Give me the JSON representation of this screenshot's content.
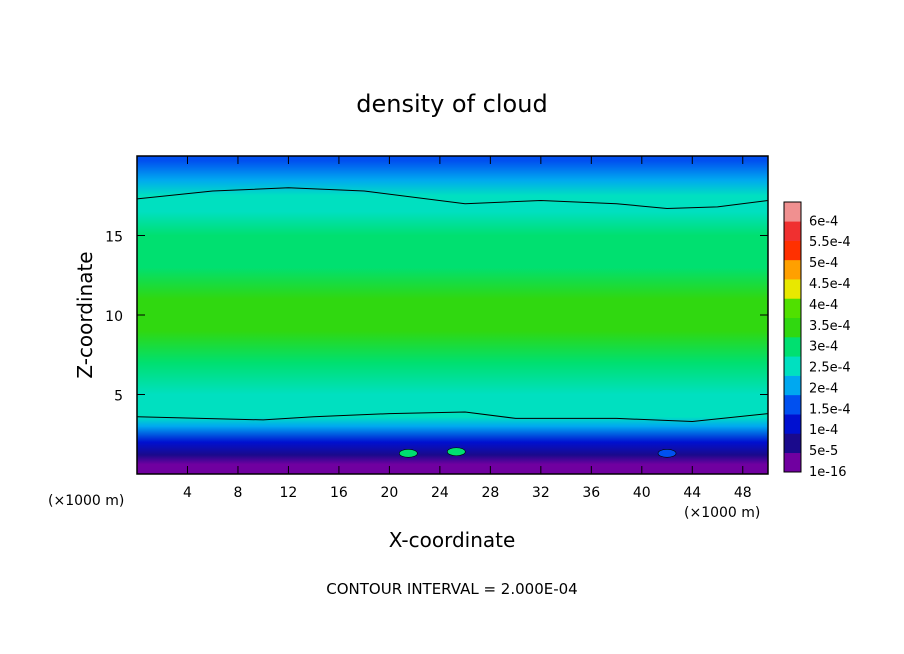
{
  "chart_data": {
    "type": "heatmap",
    "title": "density of cloud",
    "xlabel": "X-coordinate",
    "ylabel": "Z-coordinate",
    "x_unit": "(×1000 m)",
    "y_unit": "(×1000 m)",
    "xlim": [
      0,
      50
    ],
    "ylim": [
      0,
      20
    ],
    "x_ticks": [
      4,
      8,
      12,
      16,
      20,
      24,
      28,
      32,
      36,
      40,
      44,
      48
    ],
    "y_ticks": [
      5,
      10,
      15
    ],
    "contour_interval_text": "CONTOUR INTERVAL = 2.000E-04",
    "colorbar": {
      "labels": [
        "1e-16",
        "5e-5",
        "1e-4",
        "1.5e-4",
        "2e-4",
        "2.5e-4",
        "3e-4",
        "3.5e-4",
        "4e-4",
        "4.5e-4",
        "5e-4",
        "5.5e-4",
        "6e-4"
      ],
      "colors": [
        "#7000a0",
        "#1a0a8c",
        "#0010d0",
        "#0050f0",
        "#00a8f0",
        "#00e0c0",
        "#00e070",
        "#30d810",
        "#50e000",
        "#e8e800",
        "#ffa000",
        "#ff3000",
        "#f03030",
        "#f09090"
      ]
    },
    "vertical_profile": [
      {
        "z": 0.6,
        "value": 0.0
      },
      {
        "z": 1.2,
        "value": 3e-05
      },
      {
        "z": 2.0,
        "value": 8e-05
      },
      {
        "z": 3.0,
        "value": 0.00016
      },
      {
        "z": 3.6,
        "value": 0.0002
      },
      {
        "z": 5.0,
        "value": 0.000245
      },
      {
        "z": 7.0,
        "value": 0.000285
      },
      {
        "z": 9.0,
        "value": 0.00031
      },
      {
        "z": 11.0,
        "value": 0.00031
      },
      {
        "z": 13.0,
        "value": 0.00029
      },
      {
        "z": 15.0,
        "value": 0.00026
      },
      {
        "z": 16.5,
        "value": 0.00023
      },
      {
        "z": 17.5,
        "value": 0.0002
      },
      {
        "z": 18.5,
        "value": 0.00016
      },
      {
        "z": 19.7,
        "value": 0.0001
      }
    ],
    "contour_2e-4_upper": [
      {
        "x": 0,
        "z": 17.3
      },
      {
        "x": 6,
        "z": 17.8
      },
      {
        "x": 12,
        "z": 18.0
      },
      {
        "x": 18,
        "z": 17.8
      },
      {
        "x": 26,
        "z": 17.0
      },
      {
        "x": 32,
        "z": 17.2
      },
      {
        "x": 38,
        "z": 17.0
      },
      {
        "x": 42,
        "z": 16.7
      },
      {
        "x": 46,
        "z": 16.8
      },
      {
        "x": 50,
        "z": 17.2
      }
    ],
    "contour_2e-4_lower": [
      {
        "x": 0,
        "z": 3.6
      },
      {
        "x": 10,
        "z": 3.4
      },
      {
        "x": 14,
        "z": 3.6
      },
      {
        "x": 20,
        "z": 3.8
      },
      {
        "x": 26,
        "z": 3.9
      },
      {
        "x": 30,
        "z": 3.5
      },
      {
        "x": 38,
        "z": 3.5
      },
      {
        "x": 44,
        "z": 3.3
      },
      {
        "x": 50,
        "z": 3.8
      }
    ],
    "low_level_features": [
      {
        "x": 21.5,
        "z": 1.3,
        "value": 0.00025
      },
      {
        "x": 25.3,
        "z": 1.4,
        "value": 0.00025
      },
      {
        "x": 42.0,
        "z": 1.3,
        "value": 0.00015
      }
    ]
  }
}
